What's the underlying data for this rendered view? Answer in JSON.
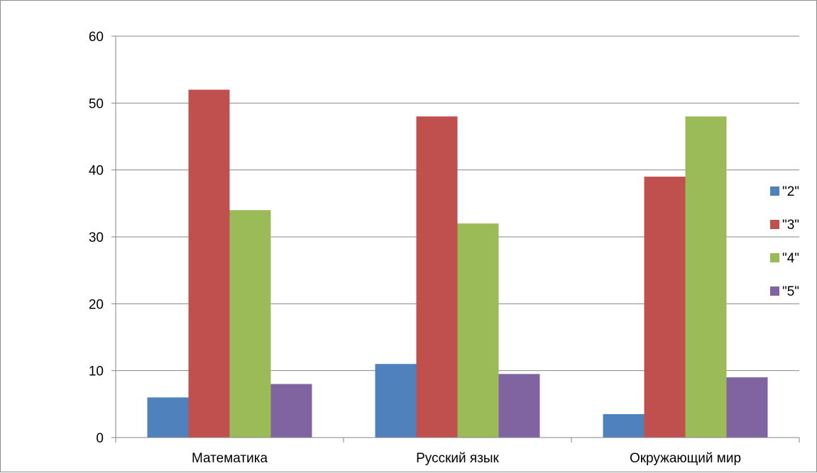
{
  "chart_data": {
    "type": "bar",
    "categories": [
      "Математика",
      "Русский язык",
      "Окружающий мир"
    ],
    "series": [
      {
        "name": "\"2\"",
        "values": [
          6,
          11,
          3.5
        ],
        "color": "#4f81bd"
      },
      {
        "name": "\"3\"",
        "values": [
          52,
          48,
          39
        ],
        "color": "#c0504d"
      },
      {
        "name": "\"4\"",
        "values": [
          34,
          32,
          48
        ],
        "color": "#9bbb59"
      },
      {
        "name": "\"5\"",
        "values": [
          8,
          9.5,
          9
        ],
        "color": "#8064a2"
      }
    ],
    "title": "",
    "xlabel": "",
    "ylabel": "",
    "ylim": [
      0,
      60
    ],
    "yticks": [
      "0",
      "10",
      "20",
      "30",
      "40",
      "50",
      "60"
    ],
    "grid": true,
    "legend": "right",
    "colors": {
      "gridline": "#868686",
      "axis": "#868686",
      "frame": "#8c8c8c"
    }
  }
}
